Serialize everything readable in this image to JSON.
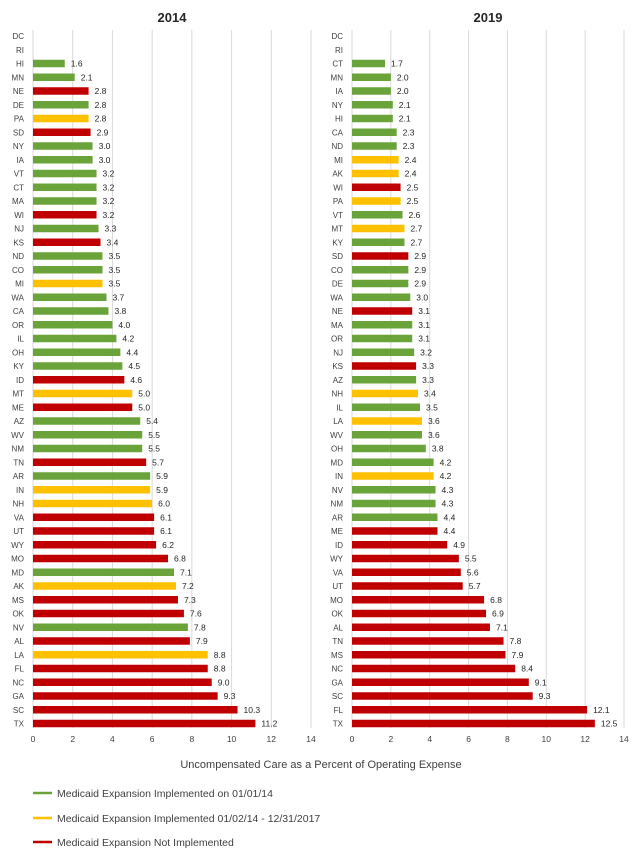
{
  "colors": {
    "implemented_2014": "#6aa33a",
    "implemented_later": "#ffc000",
    "not_implemented": "#c00000",
    "grid": "#d9d9d9"
  },
  "xlabel": "Uncompensated Care as a Percent of Operating Expense",
  "legend": [
    {
      "key": "g",
      "label": "Medicaid Expansion Implemented on 01/01/14"
    },
    {
      "key": "y",
      "label": "Medicaid Expansion Implemented 01/02/14 - 12/31/2017"
    },
    {
      "key": "r",
      "label": "Medicaid Expansion Not Implemented"
    }
  ],
  "chart_data": [
    {
      "type": "bar",
      "orientation": "horizontal",
      "title": "2014",
      "xlim": [
        0,
        14
      ],
      "xticks": [
        0,
        2,
        4,
        6,
        8,
        10,
        12,
        14
      ],
      "grid": true,
      "categories": [
        "DC",
        "RI",
        "HI",
        "MN",
        "NE",
        "DE",
        "PA",
        "SD",
        "NY",
        "IA",
        "VT",
        "CT",
        "MA",
        "WI",
        "NJ",
        "KS",
        "ND",
        "CO",
        "MI",
        "WA",
        "CA",
        "OR",
        "IL",
        "OH",
        "KY",
        "ID",
        "MT",
        "ME",
        "AZ",
        "WV",
        "NM",
        "TN",
        "AR",
        "IN",
        "NH",
        "VA",
        "UT",
        "WY",
        "MO",
        "MD",
        "AK",
        "MS",
        "OK",
        "NV",
        "AL",
        "LA",
        "FL",
        "NC",
        "GA",
        "SC",
        "TX"
      ],
      "values": [
        null,
        null,
        1.6,
        2.1,
        2.8,
        2.8,
        2.8,
        2.9,
        3.0,
        3.0,
        3.2,
        3.2,
        3.2,
        3.2,
        3.3,
        3.4,
        3.5,
        3.5,
        3.5,
        3.7,
        3.8,
        4.0,
        4.2,
        4.4,
        4.5,
        4.6,
        5.0,
        5.0,
        5.4,
        5.5,
        5.5,
        5.7,
        5.9,
        5.9,
        6.0,
        6.1,
        6.1,
        6.2,
        6.8,
        7.1,
        7.2,
        7.3,
        7.6,
        7.8,
        7.9,
        8.8,
        8.8,
        9.0,
        9.3,
        10.3,
        11.2
      ],
      "labels": [
        "",
        "",
        "1.6",
        "2.1",
        "2.8",
        "2.8",
        "2.8",
        "2.9",
        "3.0",
        "3.0",
        "3.2",
        "3.2",
        "3.2",
        "3.2",
        "3.3",
        "3.4",
        "3.5",
        "3.5",
        "3.5",
        "3.7",
        "3.8",
        "4.0",
        "4.2",
        "4.4",
        "4.5",
        "4.6",
        "5.0",
        "5.0",
        "5.4",
        "5.5",
        "5.5",
        "5.7",
        "5.9",
        "5.9",
        "6.0",
        "6.1",
        "6.1",
        "6.2",
        "6.8",
        "7.1",
        "7.2",
        "7.3",
        "7.6",
        "7.8",
        "7.9",
        "8.8",
        "8.8",
        "9.0",
        "9.3",
        "10.3",
        "11.2"
      ],
      "groups": [
        "",
        "",
        "g",
        "g",
        "r",
        "g",
        "y",
        "r",
        "g",
        "g",
        "g",
        "g",
        "g",
        "r",
        "g",
        "r",
        "g",
        "g",
        "y",
        "g",
        "g",
        "g",
        "g",
        "g",
        "g",
        "r",
        "y",
        "r",
        "g",
        "g",
        "g",
        "r",
        "g",
        "y",
        "y",
        "r",
        "r",
        "r",
        "r",
        "g",
        "y",
        "r",
        "r",
        "g",
        "r",
        "y",
        "r",
        "r",
        "r",
        "r",
        "r"
      ]
    },
    {
      "type": "bar",
      "orientation": "horizontal",
      "title": "2019",
      "xlim": [
        0,
        14
      ],
      "xticks": [
        0,
        2,
        4,
        6,
        8,
        10,
        12,
        14
      ],
      "grid": true,
      "categories": [
        "DC",
        "RI",
        "CT",
        "MN",
        "IA",
        "NY",
        "HI",
        "CA",
        "ND",
        "MI",
        "AK",
        "WI",
        "PA",
        "VT",
        "MT",
        "KY",
        "SD",
        "CO",
        "DE",
        "WA",
        "NE",
        "MA",
        "OR",
        "NJ",
        "KS",
        "AZ",
        "NH",
        "IL",
        "LA",
        "WV",
        "OH",
        "MD",
        "IN",
        "NV",
        "NM",
        "AR",
        "ME",
        "ID",
        "WY",
        "VA",
        "UT",
        "MO",
        "OK",
        "AL",
        "TN",
        "MS",
        "NC",
        "GA",
        "SC",
        "FL",
        "TX"
      ],
      "values": [
        null,
        null,
        1.7,
        2.0,
        2.0,
        2.1,
        2.1,
        2.3,
        2.3,
        2.4,
        2.4,
        2.5,
        2.5,
        2.6,
        2.7,
        2.7,
        2.9,
        2.9,
        2.9,
        3.0,
        3.1,
        3.1,
        3.1,
        3.2,
        3.3,
        3.3,
        3.4,
        3.5,
        3.6,
        3.6,
        3.8,
        4.2,
        4.2,
        4.3,
        4.3,
        4.4,
        4.4,
        4.9,
        5.5,
        5.6,
        5.7,
        6.8,
        6.9,
        7.1,
        7.8,
        7.9,
        8.4,
        9.1,
        9.3,
        12.1,
        12.5
      ],
      "labels": [
        "",
        "",
        "1.7",
        "2.0",
        "2.0",
        "2.1",
        "2.1",
        "2.3",
        "2.3",
        "2.4",
        "2.4",
        "2.5",
        "2.5",
        "2.6",
        "2.7",
        "2.7",
        "2.9",
        "2.9",
        "2.9",
        "3.0",
        "3.1",
        "3.1",
        "3.1",
        "3.2",
        "3.3",
        "3.3",
        "3.4",
        "3.5",
        "3.6",
        "3.6",
        "3.8",
        "4.2",
        "4.2",
        "4.3",
        "4.3",
        "4.4",
        "4.4",
        "4.9",
        "5.5",
        "5.6",
        "5.7",
        "6.8",
        "6.9",
        "7.1",
        "7.8",
        "7.9",
        "8.4",
        "9.1",
        "9.3",
        "12.1",
        "12.5"
      ],
      "groups": [
        "",
        "",
        "g",
        "g",
        "g",
        "g",
        "g",
        "g",
        "g",
        "y",
        "y",
        "r",
        "y",
        "g",
        "y",
        "g",
        "r",
        "g",
        "g",
        "g",
        "r",
        "g",
        "g",
        "g",
        "r",
        "g",
        "y",
        "g",
        "y",
        "g",
        "g",
        "g",
        "y",
        "g",
        "g",
        "g",
        "r",
        "r",
        "r",
        "r",
        "r",
        "r",
        "r",
        "r",
        "r",
        "r",
        "r",
        "r",
        "r",
        "r",
        "r"
      ]
    }
  ]
}
